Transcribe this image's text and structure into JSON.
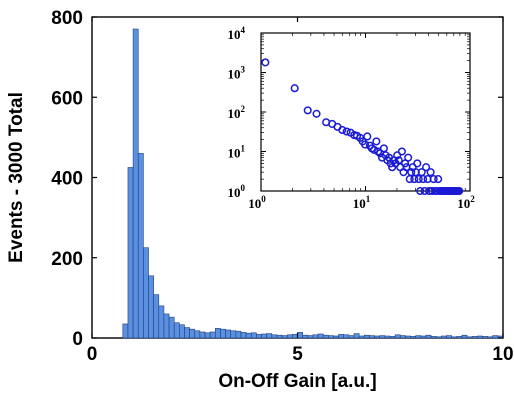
{
  "chart_data": [
    {
      "type": "bar",
      "xlabel": "On-Off Gain [a.u.]",
      "ylabel": "Events - 3000 Total",
      "xlim": [
        0,
        10
      ],
      "ylim": [
        0,
        800
      ],
      "xticks": [
        "0",
        "5",
        "10"
      ],
      "yticks": [
        "0",
        "200",
        "400",
        "600",
        "800"
      ],
      "grid": false,
      "bar_color": "#5b8fe0",
      "bin_width": 0.125,
      "bins_start": [
        0.75,
        0.875,
        1.0,
        1.125,
        1.25,
        1.375,
        1.5,
        1.625,
        1.75,
        1.875,
        2.0,
        2.125,
        2.25,
        2.375,
        2.5,
        2.625,
        2.75,
        2.875,
        3.0,
        3.125,
        3.25,
        3.375,
        3.5,
        3.625,
        3.75,
        3.875,
        4.0,
        4.125,
        4.25,
        4.375,
        4.5,
        4.625,
        4.75,
        4.875,
        5.0,
        5.125,
        5.25,
        5.375,
        5.5,
        5.625,
        5.75,
        5.875,
        6.0,
        6.125,
        6.25,
        6.375,
        6.5,
        6.625,
        6.75,
        6.875,
        7.0,
        7.125,
        7.25,
        7.375,
        7.5,
        7.625,
        7.75,
        7.875,
        8.0,
        8.125,
        8.25,
        8.375,
        8.5,
        8.625,
        8.75,
        8.875,
        9.0,
        9.125,
        9.25,
        9.375,
        9.5,
        9.625,
        9.75,
        9.875
      ],
      "values": [
        35,
        425,
        770,
        460,
        225,
        155,
        108,
        80,
        60,
        52,
        38,
        33,
        26,
        22,
        18,
        15,
        13,
        15,
        24,
        22,
        20,
        18,
        17,
        14,
        12,
        13,
        9,
        10,
        11,
        8,
        7,
        6,
        8,
        9,
        14,
        7,
        6,
        8,
        10,
        7,
        6,
        5,
        9,
        8,
        6,
        11,
        5,
        7,
        6,
        5,
        6,
        5,
        4,
        8,
        6,
        5,
        4,
        6,
        5,
        7,
        4,
        3,
        5,
        6,
        3,
        4,
        7,
        3,
        4,
        5,
        4,
        3,
        6,
        5
      ]
    },
    {
      "type": "scatter",
      "inset": true,
      "xscale": "log",
      "yscale": "log",
      "xlim": [
        1,
        100
      ],
      "ylim": [
        1,
        10000
      ],
      "xticks": [
        {
          "base": "10",
          "exp": "0"
        },
        {
          "base": "10",
          "exp": "1"
        },
        {
          "base": "10",
          "exp": "2"
        }
      ],
      "yticks": [
        {
          "base": "10",
          "exp": "0"
        },
        {
          "base": "10",
          "exp": "1"
        },
        {
          "base": "10",
          "exp": "2"
        },
        {
          "base": "10",
          "exp": "3"
        },
        {
          "base": "10",
          "exp": "4"
        }
      ],
      "marker_color": "#1a1ad6",
      "x": [
        1.1,
        2.1,
        2.8,
        3.4,
        4.2,
        4.8,
        5.4,
        6.0,
        6.6,
        7.2,
        7.8,
        8.3,
        8.9,
        9.4,
        9.9,
        10.4,
        11.0,
        11.5,
        12.1,
        12.7,
        13.2,
        13.8,
        14.4,
        15.0,
        15.6,
        16.2,
        16.8,
        17.4,
        18.0,
        18.7,
        19.4,
        20.1,
        20.8,
        21.5,
        22.3,
        23.1,
        23.9,
        24.7,
        25.6,
        26.5,
        27.4,
        28.3,
        29.3,
        30.3,
        31.3,
        32.3,
        33.4,
        34.5,
        35.6,
        36.8,
        38.0,
        39.3,
        40.6,
        42.0,
        43.4,
        44.9,
        46.4,
        48.0,
        49.6,
        51.3,
        53.0,
        54.8,
        56.6,
        58.5,
        60.5,
        62.5,
        64.6,
        66.8,
        69.0,
        71.3,
        73.7,
        76.2,
        78.8
      ],
      "y": [
        1800,
        400,
        110,
        90,
        55,
        50,
        42,
        35,
        32,
        30,
        26,
        25,
        22,
        18,
        15,
        24,
        14,
        12,
        11,
        18,
        10,
        9,
        7,
        12,
        8,
        6,
        7,
        5,
        4,
        6,
        5,
        8,
        6,
        4,
        10,
        3,
        5,
        4,
        7,
        2,
        3,
        4,
        2,
        3,
        5,
        2,
        1,
        3,
        2,
        1,
        4,
        2,
        1,
        3,
        1,
        2,
        1,
        1,
        2,
        1,
        1,
        1,
        1,
        1,
        1,
        1,
        1,
        1,
        1,
        1,
        1,
        1,
        1
      ]
    }
  ]
}
